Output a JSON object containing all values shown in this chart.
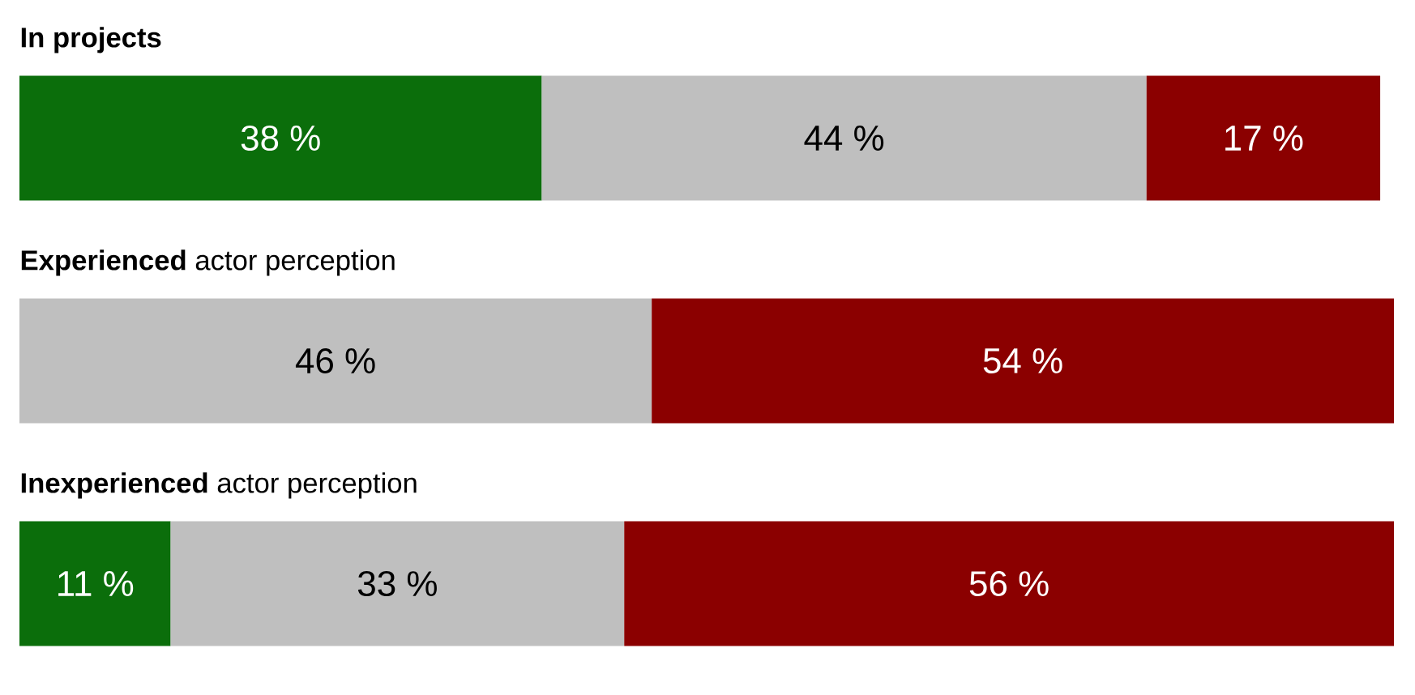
{
  "chart_data": {
    "type": "bar",
    "orientation": "horizontal",
    "stacked": true,
    "categories": [
      "**In projects**",
      "**Experienced** actor perception",
      "**Inexperienced** actor perception"
    ],
    "xlim": [
      0,
      100
    ],
    "tick_labels": false,
    "series": [
      {
        "color": "#0b6e0b",
        "values": [
          38,
          null,
          11
        ],
        "value_labels": [
          "38 %",
          null,
          "11 %"
        ]
      },
      {
        "color": "#bfbfbf",
        "values": [
          44,
          46,
          33
        ],
        "value_labels": [
          "44 %",
          "46 %",
          "33 %"
        ]
      },
      {
        "color": "#8b0000",
        "values": [
          17,
          54,
          56
        ],
        "value_labels": [
          "17 %",
          "54 %",
          "56 %"
        ]
      }
    ]
  }
}
